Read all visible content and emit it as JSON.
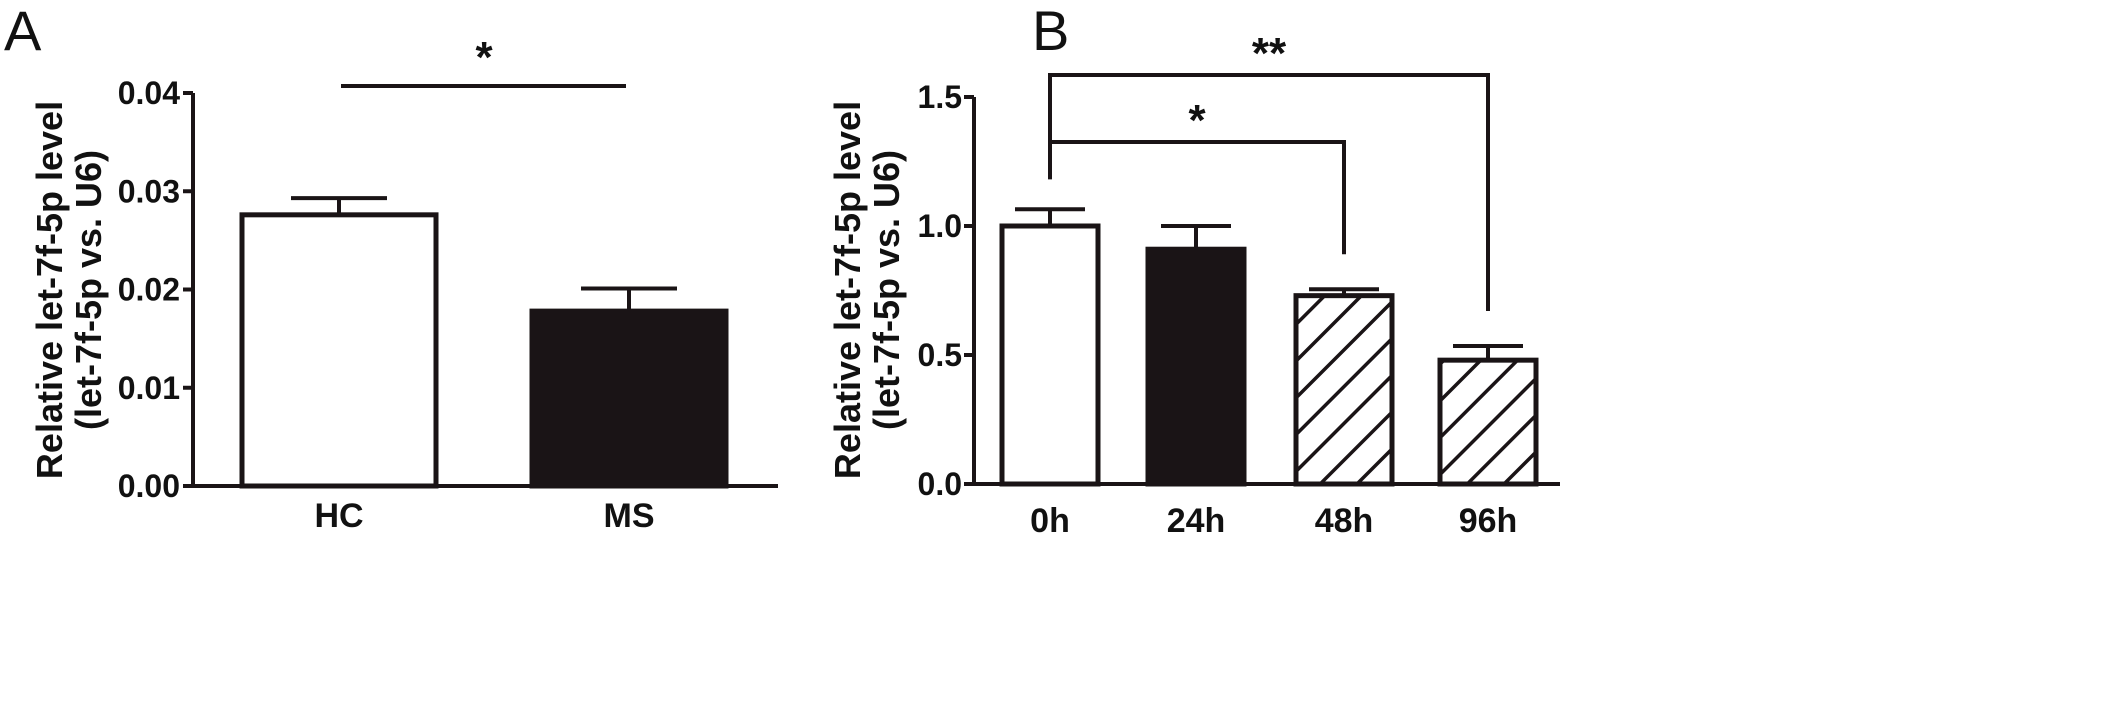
{
  "panels": {
    "A": {
      "letter": "A"
    },
    "B": {
      "letter": "B"
    }
  },
  "colors": {
    "ink": "#1a1416",
    "white": "#ffffff"
  },
  "chart_data": [
    {
      "panel": "A",
      "type": "bar",
      "categories": [
        "HC",
        "MS"
      ],
      "values": [
        0.0276,
        0.0178
      ],
      "errors": [
        0.0017,
        0.0023
      ],
      "fills": [
        "white",
        "solid"
      ],
      "ylabel_line1": "Relative let-7f-5p level",
      "ylabel_line2": "(let-7f-5p vs. U6)",
      "ylim": [
        0,
        0.04
      ],
      "yticks": [
        0.0,
        0.01,
        0.02,
        0.03,
        0.04
      ],
      "yticklabels": [
        "0.00",
        "0.01",
        "0.02",
        "0.03",
        "0.04"
      ],
      "significance": [
        {
          "from": "HC",
          "to": "MS",
          "label": "*",
          "style": "line"
        }
      ]
    },
    {
      "panel": "B",
      "type": "bar",
      "categories": [
        "0h",
        "24h",
        "48h",
        "96h"
      ],
      "values": [
        1.0,
        0.91,
        0.73,
        0.48
      ],
      "errors": [
        0.065,
        0.09,
        0.025,
        0.055
      ],
      "fills": [
        "white",
        "solid",
        "hatch",
        "hatch"
      ],
      "ylabel_line1": "Relative let-7f-5p level",
      "ylabel_line2": "(let-7f-5p vs. U6)",
      "ylim": [
        0,
        1.5
      ],
      "yticks": [
        0.0,
        0.5,
        1.0,
        1.5
      ],
      "yticklabels": [
        "0.0",
        "0.5",
        "1.0",
        "1.5"
      ],
      "significance": [
        {
          "from": "0h",
          "to": "48h",
          "label": "*",
          "style": "bracket"
        },
        {
          "from": "0h",
          "to": "96h",
          "label": "**",
          "style": "bracket"
        }
      ]
    }
  ]
}
